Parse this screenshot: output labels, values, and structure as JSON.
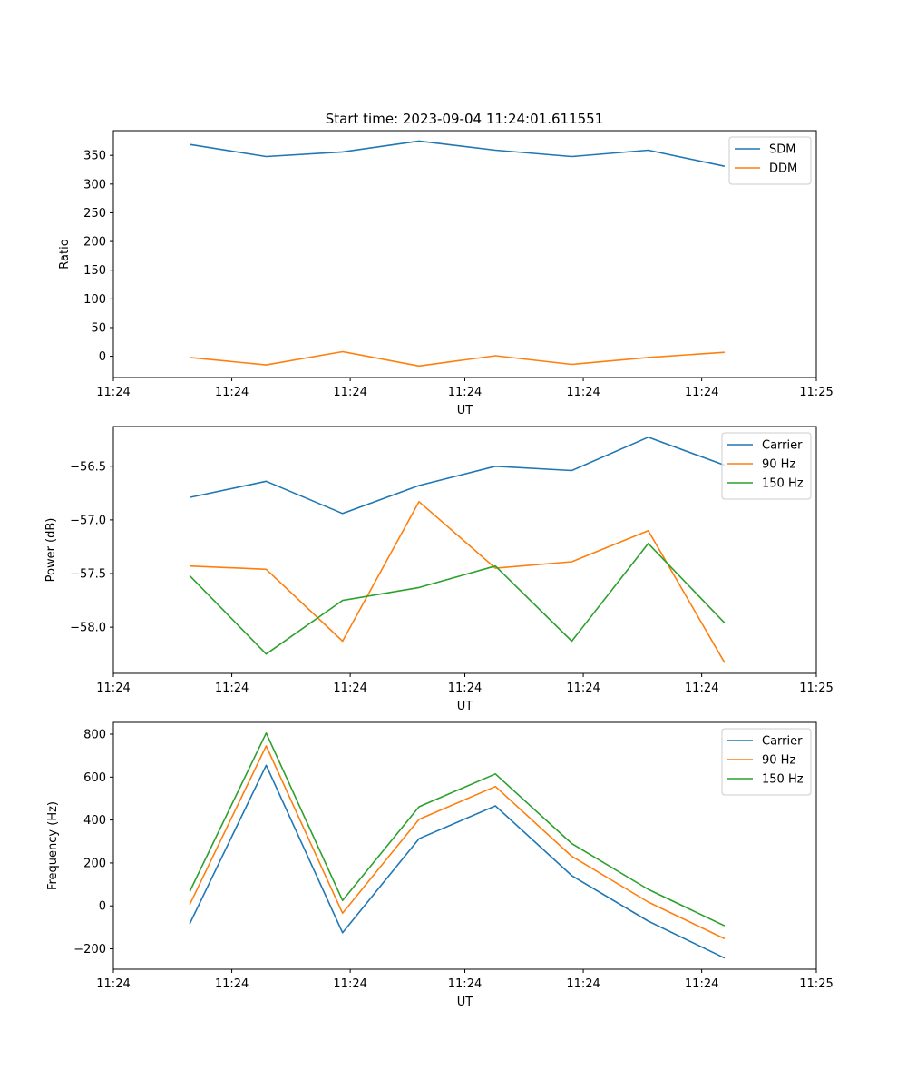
{
  "figure_title": "Start time: 2023-09-04 11:24:01.611551",
  "chart_data": [
    {
      "type": "line",
      "title": "Start time: 2023-09-04 11:24:01.611551",
      "xlabel": "UT",
      "ylabel": "Ratio",
      "x_index": [
        1,
        2,
        3,
        4,
        5,
        6,
        7,
        8
      ],
      "xlim": [
        0,
        9.2
      ],
      "x_ticks": [
        0,
        1.55,
        3.1,
        4.6,
        6.15,
        7.7,
        9.2
      ],
      "x_tick_labels": [
        "11:24",
        "11:24",
        "11:24",
        "11:24",
        "11:24",
        "11:24",
        "11:25"
      ],
      "ylim": [
        -37,
        393
      ],
      "y_ticks": [
        0,
        50,
        100,
        150,
        200,
        250,
        300,
        350
      ],
      "y_tick_labels": [
        "0",
        "50",
        "100",
        "150",
        "200",
        "250",
        "300",
        "350"
      ],
      "legend": "top-right",
      "series": [
        {
          "name": "SDM",
          "color": "#1f77b4",
          "values": [
            369,
            348,
            356,
            375,
            359,
            348,
            359,
            331
          ]
        },
        {
          "name": "DDM",
          "color": "#ff7f0e",
          "values": [
            -2,
            -15,
            8,
            -17,
            1,
            -14,
            -2,
            7
          ]
        }
      ]
    },
    {
      "type": "line",
      "title": "",
      "xlabel": "UT",
      "ylabel": "Power (dB)",
      "x_index": [
        1,
        2,
        3,
        4,
        5,
        6,
        7,
        8
      ],
      "xlim": [
        0,
        9.2
      ],
      "x_ticks": [
        0,
        1.55,
        3.1,
        4.6,
        6.15,
        7.7,
        9.2
      ],
      "x_tick_labels": [
        "11:24",
        "11:24",
        "11:24",
        "11:24",
        "11:24",
        "11:24",
        "11:25"
      ],
      "ylim": [
        -58.43,
        -56.13
      ],
      "y_ticks": [
        -58.0,
        -57.5,
        -57.0,
        -56.5
      ],
      "y_tick_labels": [
        "−58.0",
        "−57.5",
        "−57.0",
        "−56.5"
      ],
      "legend": "top-right",
      "series": [
        {
          "name": "Carrier",
          "color": "#1f77b4",
          "values": [
            -56.79,
            -56.64,
            -56.94,
            -56.68,
            -56.5,
            -56.54,
            -56.23,
            -56.49
          ]
        },
        {
          "name": "90 Hz",
          "color": "#ff7f0e",
          "values": [
            -57.43,
            -57.46,
            -58.13,
            -56.83,
            -57.45,
            -57.39,
            -57.1,
            -58.33
          ]
        },
        {
          "name": "150 Hz",
          "color": "#2ca02c",
          "values": [
            -57.52,
            -58.25,
            -57.75,
            -57.63,
            -57.43,
            -58.13,
            -57.22,
            -57.96
          ]
        }
      ]
    },
    {
      "type": "line",
      "title": "",
      "xlabel": "UT",
      "ylabel": "Frequency (Hz)",
      "x_index": [
        1,
        2,
        3,
        4,
        5,
        6,
        7,
        8
      ],
      "xlim": [
        0,
        9.2
      ],
      "x_ticks": [
        0,
        1.55,
        3.1,
        4.6,
        6.15,
        7.7,
        9.2
      ],
      "x_tick_labels": [
        "11:24",
        "11:24",
        "11:24",
        "11:24",
        "11:24",
        "11:24",
        "11:25"
      ],
      "ylim": [
        -295,
        855
      ],
      "y_ticks": [
        -200,
        0,
        200,
        400,
        600,
        800
      ],
      "y_tick_labels": [
        "−200",
        "0",
        "200",
        "400",
        "600",
        "800"
      ],
      "legend": "top-right",
      "series": [
        {
          "name": "Carrier",
          "color": "#1f77b4",
          "values": [
            -83,
            655,
            -125,
            313,
            466,
            141,
            -71,
            -243
          ]
        },
        {
          "name": "90 Hz",
          "color": "#ff7f0e",
          "values": [
            6,
            745,
            -34,
            403,
            556,
            231,
            18,
            -153
          ]
        },
        {
          "name": "150 Hz",
          "color": "#2ca02c",
          "values": [
            67,
            805,
            25,
            462,
            615,
            290,
            77,
            -93
          ]
        }
      ]
    }
  ]
}
